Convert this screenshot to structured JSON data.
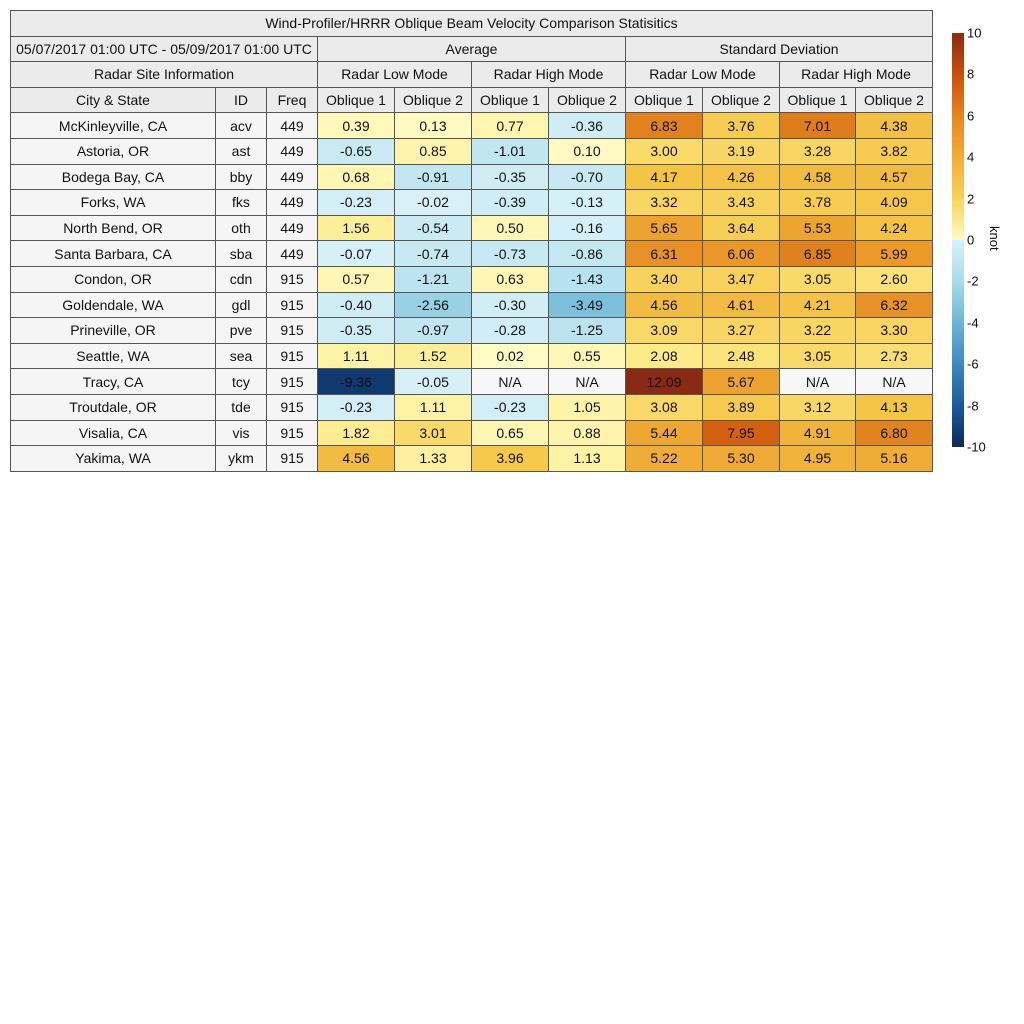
{
  "chart_data": {
    "type": "table",
    "title": "Wind-Profiler/HRRR Oblique Beam Velocity Comparison Statisitics",
    "period": "05/07/2017 01:00 UTC - 05/09/2017 01:00 UTC",
    "groups": [
      "Average",
      "Standard Deviation"
    ],
    "site_info_label": "Radar Site Information",
    "modes": [
      "Radar Low Mode",
      "Radar High Mode",
      "Radar Low Mode",
      "Radar High Mode"
    ],
    "columns": [
      "City & State",
      "ID",
      "Freq",
      "Oblique 1",
      "Oblique 2",
      "Oblique 1",
      "Oblique 2",
      "Oblique 1",
      "Oblique 2",
      "Oblique 1",
      "Oblique 2"
    ],
    "rows": [
      [
        "McKinleyville, CA",
        "acv",
        "449",
        "0.39",
        "0.13",
        "0.77",
        "-0.36",
        "6.83",
        "3.76",
        "7.01",
        "4.38"
      ],
      [
        "Astoria, OR",
        "ast",
        "449",
        "-0.65",
        "0.85",
        "-1.01",
        "0.10",
        "3.00",
        "3.19",
        "3.28",
        "3.82"
      ],
      [
        "Bodega Bay, CA",
        "bby",
        "449",
        "0.68",
        "-0.91",
        "-0.35",
        "-0.70",
        "4.17",
        "4.26",
        "4.58",
        "4.57"
      ],
      [
        "Forks, WA",
        "fks",
        "449",
        "-0.23",
        "-0.02",
        "-0.39",
        "-0.13",
        "3.32",
        "3.43",
        "3.78",
        "4.09"
      ],
      [
        "North Bend, OR",
        "oth",
        "449",
        "1.56",
        "-0.54",
        "0.50",
        "-0.16",
        "5.65",
        "3.64",
        "5.53",
        "4.24"
      ],
      [
        "Santa Barbara, CA",
        "sba",
        "449",
        "-0.07",
        "-0.74",
        "-0.73",
        "-0.86",
        "6.31",
        "6.06",
        "6.85",
        "5.99"
      ],
      [
        "Condon, OR",
        "cdn",
        "915",
        "0.57",
        "-1.21",
        "0.63",
        "-1.43",
        "3.40",
        "3.47",
        "3.05",
        "2.60"
      ],
      [
        "Goldendale, WA",
        "gdl",
        "915",
        "-0.40",
        "-2.56",
        "-0.30",
        "-3.49",
        "4.56",
        "4.61",
        "4.21",
        "6.32"
      ],
      [
        "Prineville, OR",
        "pve",
        "915",
        "-0.35",
        "-0.97",
        "-0.28",
        "-1.25",
        "3.09",
        "3.27",
        "3.22",
        "3.30"
      ],
      [
        "Seattle, WA",
        "sea",
        "915",
        "1.11",
        "1.52",
        "0.02",
        "0.55",
        "2.08",
        "2.48",
        "3.05",
        "2.73"
      ],
      [
        "Tracy, CA",
        "tcy",
        "915",
        "-9.36",
        "-0.05",
        "N/A",
        "N/A",
        "12.09",
        "5.67",
        "N/A",
        "N/A"
      ],
      [
        "Troutdale, OR",
        "tde",
        "915",
        "-0.23",
        "1.11",
        "-0.23",
        "1.05",
        "3.08",
        "3.89",
        "3.12",
        "4.13"
      ],
      [
        "Visalia, CA",
        "vis",
        "915",
        "1.82",
        "3.01",
        "0.65",
        "0.88",
        "5.44",
        "7.95",
        "4.91",
        "6.80"
      ],
      [
        "Yakima, WA",
        "ykm",
        "915",
        "4.56",
        "1.33",
        "3.96",
        "1.13",
        "5.22",
        "5.30",
        "4.95",
        "5.16"
      ]
    ],
    "colorbar": {
      "label": "knot",
      "range": [
        -10,
        10
      ],
      "ticks": [
        "10",
        "8",
        "6",
        "4",
        "2",
        "0",
        "-2",
        "-4",
        "-6",
        "-8",
        "-10"
      ],
      "colors_positive": [
        "#fffbc6",
        "#fdeb8c",
        "#f5c84a",
        "#eb9a2a",
        "#d2600f",
        "#8b2a14"
      ],
      "colors_negative": [
        "#d8f1f8",
        "#a9dbea",
        "#6cb5d6",
        "#3d88c0",
        "#1c5a9c",
        "#0a2a5c"
      ]
    }
  }
}
